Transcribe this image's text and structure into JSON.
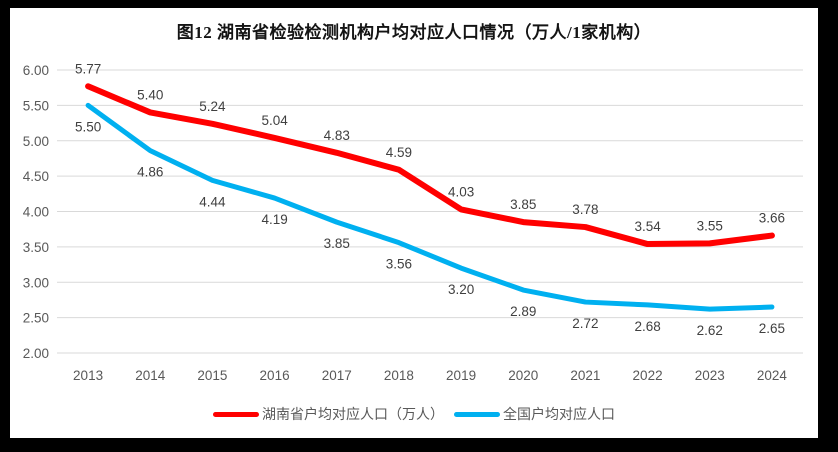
{
  "title": "图12 湖南省检验检测机构户均对应人口情况（万人/1家机构）",
  "chart_data": {
    "type": "line",
    "categories": [
      "2013",
      "2014",
      "2015",
      "2016",
      "2017",
      "2018",
      "2019",
      "2020",
      "2021",
      "2022",
      "2023",
      "2024"
    ],
    "series": [
      {
        "name": "湖南省户均对应人口（万人）",
        "color": "#FF0000",
        "stroke_width": 6,
        "label_position": "above",
        "values": [
          5.77,
          5.4,
          5.24,
          5.04,
          4.83,
          4.59,
          4.03,
          3.85,
          3.78,
          3.54,
          3.55,
          3.66
        ]
      },
      {
        "name": "全国户均对应人口",
        "color": "#00B0F0",
        "stroke_width": 5,
        "label_position": "below",
        "values": [
          5.5,
          4.86,
          4.44,
          4.19,
          3.85,
          3.56,
          3.2,
          2.89,
          2.72,
          2.68,
          2.62,
          2.65
        ]
      }
    ],
    "ylim": [
      2.0,
      6.0
    ],
    "ytick_labels": [
      "2.00",
      "2.50",
      "3.00",
      "3.50",
      "4.00",
      "4.50",
      "5.00",
      "5.50",
      "6.00"
    ],
    "xlabel": "",
    "ylabel": "",
    "grid": true,
    "legend_position": "bottom",
    "colors": {
      "grid": "#D9D9D9",
      "axis_text": "#595959",
      "data_label": "#404040",
      "background": "#FFFFFF",
      "frame": "#000000"
    }
  }
}
